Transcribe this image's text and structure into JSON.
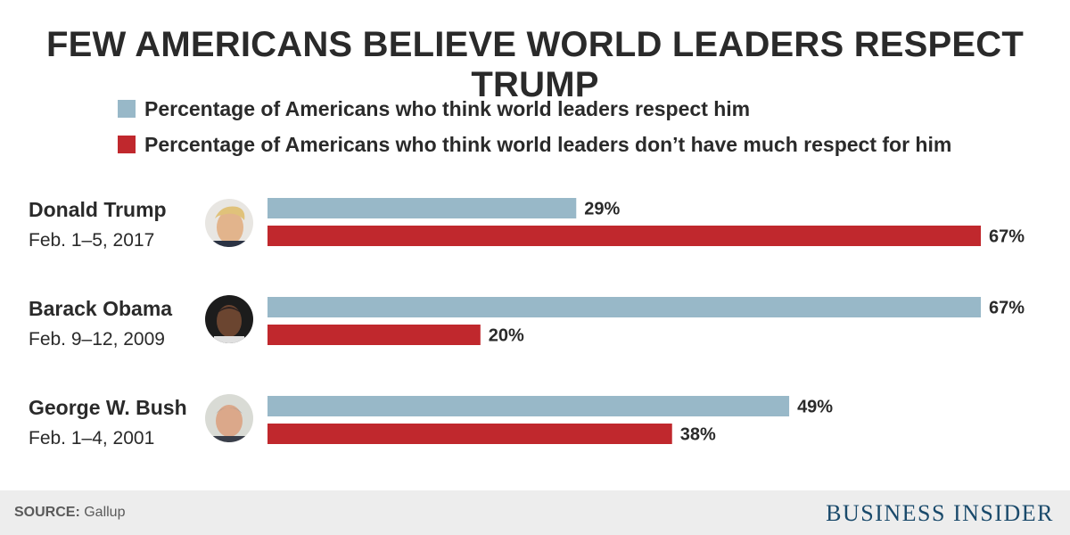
{
  "chart_data": {
    "type": "bar",
    "orientation": "horizontal",
    "title": "FEW AMERICANS BELIEVE WORLD LEADERS RESPECT TRUMP",
    "categories": [
      {
        "name": "Donald Trump",
        "date": "Feb. 1–5, 2017",
        "avatar": "donald-trump-photo"
      },
      {
        "name": "Barack Obama",
        "date": "Feb. 9–12, 2009",
        "avatar": "barack-obama-photo"
      },
      {
        "name": "George W. Bush",
        "date": "Feb. 1–4, 2001",
        "avatar": "george-w-bush-photo"
      }
    ],
    "series": [
      {
        "name": "Percentage of Americans who think world leaders respect him",
        "color": "#98b8c8",
        "values": [
          29,
          67,
          49
        ],
        "labels": [
          "29%",
          "67%",
          "49%"
        ]
      },
      {
        "name": "Percentage of Americans who think world leaders don’t have much respect for him",
        "color": "#c0282d",
        "values": [
          67,
          20,
          38
        ],
        "labels": [
          "67%",
          "20%",
          "38%"
        ]
      }
    ],
    "xlim": [
      0,
      67
    ],
    "grid": false,
    "legend_position": "top-left"
  },
  "footer": {
    "source_label": "SOURCE:",
    "source_value": " Gallup",
    "brand": "BUSINESS INSIDER"
  }
}
